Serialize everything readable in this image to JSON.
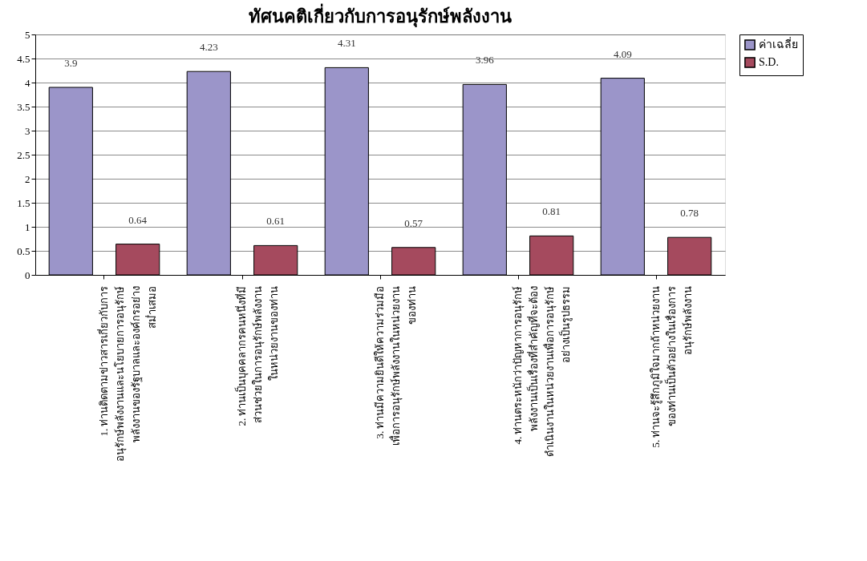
{
  "chart_data": {
    "type": "bar",
    "title": "ทัศนคติเกี่ยวกับการอนุรักษ์พลังงาน",
    "categories": [
      "1. ท่านติดตามข่าวสารเกี่ยวกับการ\nอนุรักษ์พลังงานและนโยบายการอนุรักษ์\nพลังงานของรัฐบาลและองค์กรอย่าง\nสม่ำเสมอ",
      "2. ท่านเป็นบุคคลากรคนหนึ่งที่มี\nส่วนช่วยในการอนุรักษ์พลังงาน\nในหน่วยงานของท่าน",
      "3. ท่านมีความยินดีให้ความร่วมมือ\nเพื่อการอนุรักษ์พลังงานในหน่วยงาน\nของท่าน",
      "4. ท่านตระหนักว่าปัญหาการอนุรักษ์\nพลังงานเป็นเรื่องที่สำคัญที่จะต้อง\nดำเนินงานในหน่วยงานเพื่อการอนุรักษ์\nอย่างเป็นรูปธรรม",
      "5. ท่านจะรู้สึกภูมิใจมากถ้าหน่วยงาน\nของท่านเป็นตัวอย่างในเรื่องการ\nอนุรักษ์พลังงาน"
    ],
    "series": [
      {
        "name": "ค่าเฉลี่ย",
        "color": "#9b95c9",
        "values": [
          3.9,
          4.23,
          4.31,
          3.96,
          4.09
        ]
      },
      {
        "name": "S.D.",
        "color": "#a54a5e",
        "values": [
          0.64,
          0.61,
          0.57,
          0.81,
          0.78
        ]
      }
    ],
    "ylim": [
      0,
      5
    ],
    "yticks": [
      0,
      0.5,
      1,
      1.5,
      2,
      2.5,
      3,
      3.5,
      4,
      4.5,
      5
    ],
    "grid": "y",
    "legend": "right",
    "data_labels": true
  }
}
